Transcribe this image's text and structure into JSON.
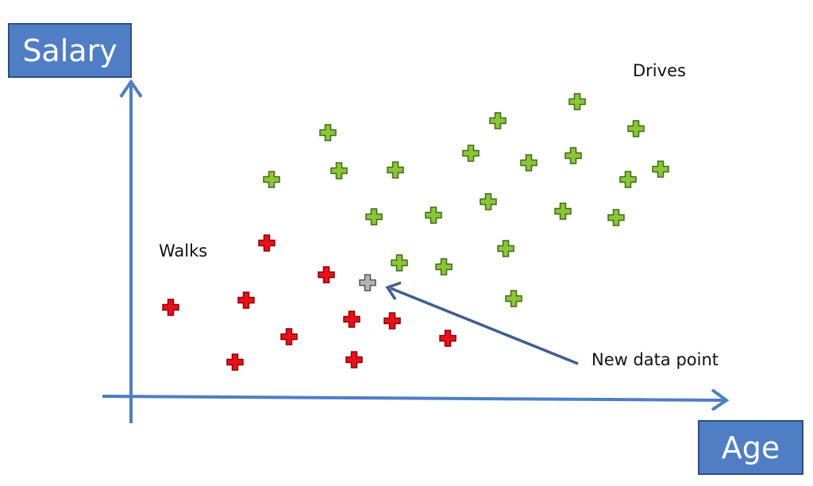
{
  "axis": {
    "x_label": "Age",
    "y_label": "Salary"
  },
  "labels": {
    "drives": "Drives",
    "walks": "Walks",
    "new_point": "New data point"
  },
  "colors": {
    "axis": "#4f7ec4",
    "axis_box_border": "#2f4f7a",
    "arrow": "#3f5f8e",
    "drives_fill": "#8cc43a",
    "drives_stroke": "#3f6b16",
    "walks_fill": "#e8111b",
    "walks_stroke": "#8e0008",
    "new_fill": "#b3b3b3",
    "new_stroke": "#555555"
  },
  "chart_data": {
    "type": "scatter",
    "series": [
      {
        "name": "Drives",
        "points": [
          [
            413,
            167
          ],
          [
            627,
            152
          ],
          [
            727,
            128
          ],
          [
            801,
            162
          ],
          [
            342,
            226
          ],
          [
            427,
            215
          ],
          [
            498,
            214
          ],
          [
            593,
            193
          ],
          [
            666,
            205
          ],
          [
            722,
            196
          ],
          [
            791,
            226
          ],
          [
            832,
            213
          ],
          [
            471,
            273
          ],
          [
            546,
            271
          ],
          [
            615,
            254
          ],
          [
            709,
            266
          ],
          [
            776,
            274
          ],
          [
            637,
            313
          ],
          [
            503,
            331
          ],
          [
            559,
            336
          ],
          [
            647,
            376
          ]
        ]
      },
      {
        "name": "Walks",
        "points": [
          [
            336,
            306
          ],
          [
            411,
            346
          ],
          [
            215,
            387
          ],
          [
            310,
            378
          ],
          [
            364,
            424
          ],
          [
            443,
            402
          ],
          [
            494,
            404
          ],
          [
            564,
            426
          ],
          [
            296,
            456
          ],
          [
            446,
            453
          ]
        ]
      },
      {
        "name": "New data point",
        "points": [
          [
            463,
            356
          ]
        ]
      }
    ]
  }
}
